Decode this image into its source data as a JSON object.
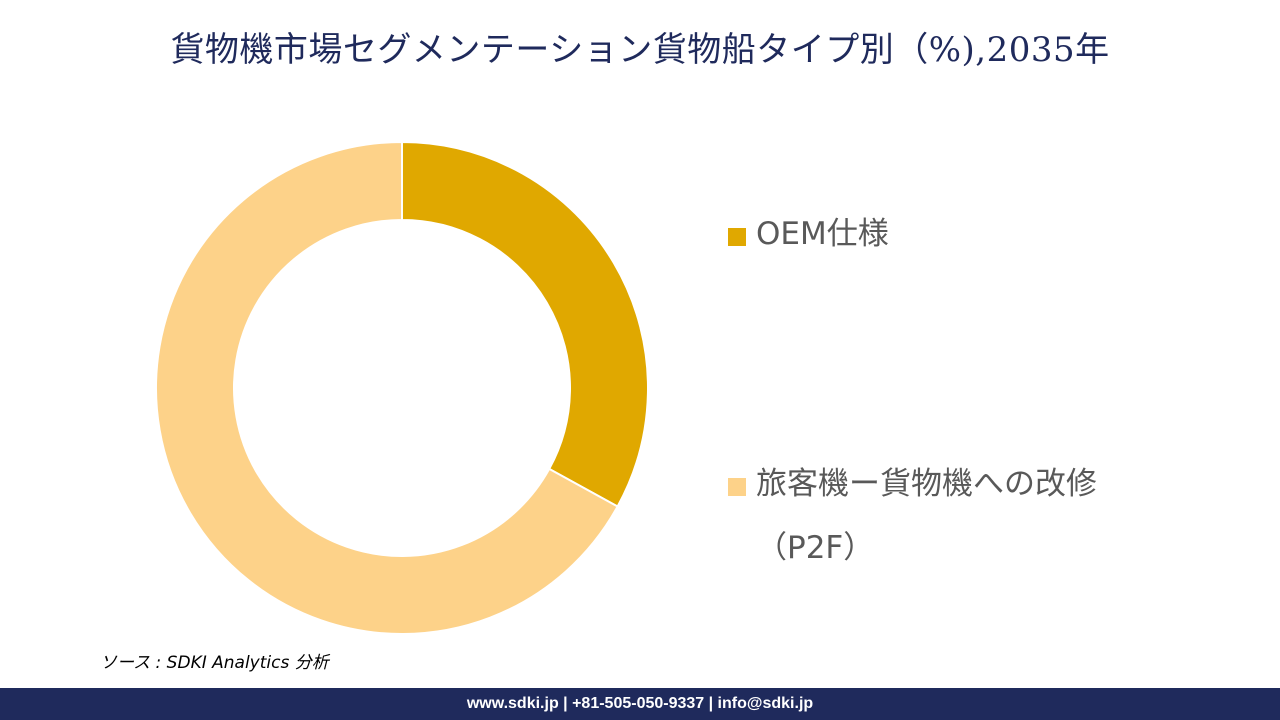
{
  "chart_data": {
    "type": "pie",
    "title": "貨物機市場セグメンテーション貨物船タイプ別（%),2035年",
    "categories": [
      "OEM仕様",
      "旅客機ー貨物機への改修（P2F）"
    ],
    "values": [
      33,
      67
    ],
    "colors": [
      "#e0a800",
      "#fdd289"
    ],
    "donut": true,
    "legend_position": "right"
  },
  "source": "ソース : SDKI Analytics 分析",
  "footer": "www.sdki.jp | +81-505-050-9337 | info@sdki.jp"
}
